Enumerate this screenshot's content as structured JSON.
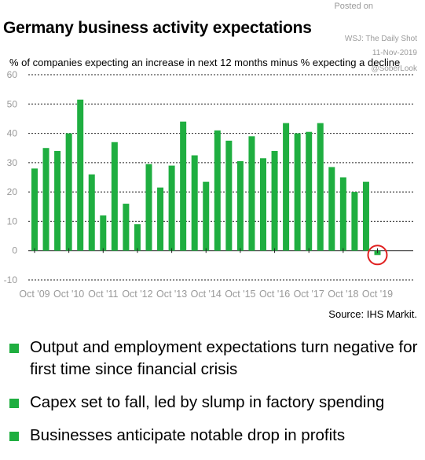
{
  "header": {
    "title": "Germany business activity expectations",
    "posted": [
      "Posted on",
      "WSJ: The Daily Shot",
      "11-Nov-2019",
      "@SoberLook"
    ]
  },
  "source": "Source: IHS Markit.",
  "bullets": [
    "Output and employment expectations turn negative for first time since financial crisis",
    "Capex set to fall, led by slump in factory spending",
    "Businesses anticipate notable drop in profits"
  ],
  "colors": {
    "bar": "#1fae40",
    "circle": "#e02020",
    "bullet": "#1fae40"
  },
  "chart_data": {
    "type": "bar",
    "title": "Germany business activity expectations",
    "ylabel": "% of companies expecting an increase in next 12 months minus % expecting a decline",
    "ylim": [
      -10,
      60
    ],
    "yticks": [
      -10,
      0,
      10,
      20,
      30,
      40,
      50,
      60
    ],
    "grid": true,
    "xticklabels": [
      "Oct '09",
      "Oct '10",
      "Oct '11",
      "Oct '12",
      "Oct '13",
      "Oct '14",
      "Oct '15",
      "Oct '16",
      "Oct '17",
      "Oct '18",
      "Oct '19"
    ],
    "periods_per_year": 3,
    "values": [
      28,
      35,
      34,
      40,
      51.5,
      26,
      12,
      37,
      16,
      9,
      29.5,
      21.5,
      29,
      44,
      32.5,
      23.5,
      41,
      37.5,
      30.5,
      39,
      31.5,
      34,
      43.5,
      40,
      40.5,
      43.5,
      28.5,
      25,
      20,
      23.5,
      -1.5
    ],
    "annotation": "last value circled"
  }
}
